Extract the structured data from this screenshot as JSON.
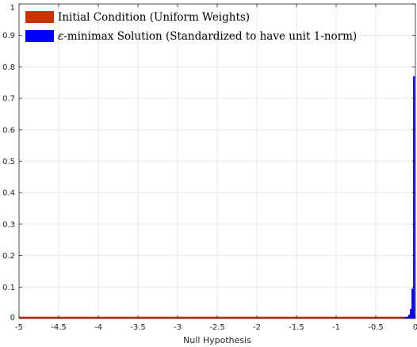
{
  "chart_data": {
    "type": "bar",
    "title": "",
    "xlabel": "Null Hypothesis",
    "ylabel": "",
    "xlim": [
      -5,
      0
    ],
    "ylim": [
      0,
      1
    ],
    "grid": true,
    "x_ticks": [
      -5,
      -4.5,
      -4,
      -3.5,
      -3,
      -2.5,
      -2,
      -1.5,
      -1,
      -0.5,
      0
    ],
    "x_tick_labels": [
      "-5",
      "-4.5",
      "-4",
      "-3.5",
      "-3",
      "-2.5",
      "-2",
      "-1.5",
      "-1",
      "-0.5",
      "0"
    ],
    "y_ticks": [
      0,
      0.1,
      0.2,
      0.3,
      0.4,
      0.5,
      0.6,
      0.7,
      0.8,
      0.9,
      1
    ],
    "y_tick_labels": [
      "0",
      "0.1",
      "0.2",
      "0.3",
      "0.4",
      "0.5",
      "0.6",
      "0.7",
      "0.8",
      "0.9",
      "1"
    ],
    "legend_position": "top-left",
    "series": [
      {
        "name": "Initial Condition (Uniform Weights)",
        "color": "#cc3300",
        "x_start": -5,
        "x_end": 0,
        "value": 0.002
      },
      {
        "name": "ε-minimax Solution (Standardized to have unit 1-norm)",
        "legend_prefix": "ε",
        "legend_rest": "-minimax Solution (Standardized to have unit 1-norm)",
        "color": "#0000ff",
        "x": [
          -0.16,
          -0.14,
          -0.12,
          -0.1,
          -0.08,
          -0.06,
          -0.04,
          -0.02,
          0.0
        ],
        "values": [
          0.001,
          0.002,
          0.003,
          0.004,
          0.006,
          0.012,
          0.03,
          0.095,
          0.77
        ]
      }
    ]
  }
}
